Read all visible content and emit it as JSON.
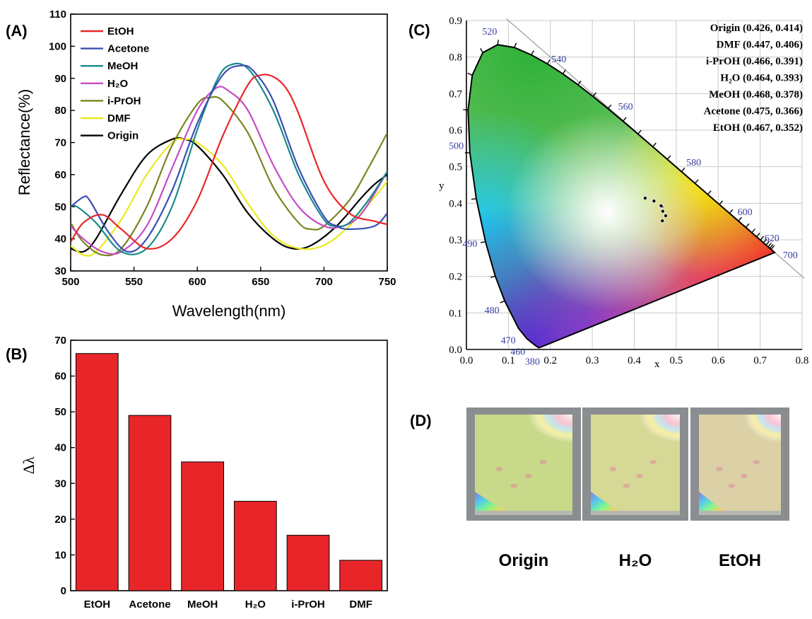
{
  "panels": {
    "a_letter": "(A)",
    "b_letter": "(B)",
    "c_letter": "(C)",
    "d_letter": "(D)"
  },
  "chart_data": [
    {
      "type": "line",
      "panel": "(A)",
      "xlabel": "Wavelength(nm)",
      "ylabel": "Reflectance(%)",
      "xlim": [
        500,
        750
      ],
      "ylim": [
        30,
        110
      ],
      "xticks": [
        500,
        550,
        600,
        650,
        700,
        750
      ],
      "yticks": [
        30,
        40,
        50,
        60,
        70,
        80,
        90,
        100,
        110
      ],
      "legend_position": "top-left",
      "series": [
        {
          "name": "EtOH",
          "color": "#e8262a",
          "x": [
            500,
            510,
            525,
            540,
            560,
            580,
            600,
            620,
            640,
            650,
            660,
            670,
            680,
            700,
            720,
            740,
            750
          ],
          "y": [
            39,
            45,
            47.5,
            43,
            37,
            40,
            52,
            72,
            88,
            91,
            90.5,
            87,
            79,
            58,
            48,
            45.5,
            44.5
          ]
        },
        {
          "name": "Acetone",
          "color": "#3a4fb4",
          "x": [
            500,
            510,
            515,
            530,
            545,
            560,
            580,
            600,
            620,
            635,
            645,
            660,
            680,
            700,
            710,
            720,
            740,
            750
          ],
          "y": [
            50,
            53,
            52,
            42,
            36,
            40,
            55,
            76,
            91,
            94,
            92,
            83,
            62,
            47,
            44,
            43,
            44,
            48
          ]
        },
        {
          "name": "MeOH",
          "color": "#188a8a",
          "x": [
            500,
            505,
            520,
            540,
            560,
            580,
            600,
            615,
            625,
            640,
            660,
            680,
            700,
            710,
            720,
            735,
            750
          ],
          "y": [
            50,
            50,
            45,
            36,
            37,
            50,
            74,
            89,
            94,
            93,
            80,
            60,
            46,
            44,
            45,
            52,
            61
          ]
        },
        {
          "name": "H₂O",
          "color": "#c64cc6",
          "x": [
            500,
            510,
            525,
            540,
            560,
            580,
            600,
            615,
            625,
            640,
            660,
            680,
            700,
            715,
            730,
            750
          ],
          "y": [
            44,
            40,
            36,
            36,
            44,
            62,
            80,
            87,
            86,
            80,
            63,
            50,
            44,
            44,
            48,
            61
          ]
        },
        {
          "name": "i-PrOH",
          "color": "#7b8420",
          "x": [
            500,
            510,
            525,
            540,
            560,
            580,
            600,
            610,
            620,
            640,
            660,
            680,
            690,
            700,
            720,
            735,
            750
          ],
          "y": [
            45,
            39,
            35,
            37,
            50,
            69,
            82,
            84,
            83,
            73,
            56,
            45,
            43,
            44,
            52,
            62,
            73
          ]
        },
        {
          "name": "DMF",
          "color": "#eaea1f",
          "x": [
            500,
            510,
            520,
            540,
            560,
            580,
            590,
            600,
            620,
            640,
            660,
            680,
            700,
            720,
            740,
            750
          ],
          "y": [
            38,
            35,
            36,
            46,
            60,
            70,
            71,
            70,
            63,
            51,
            41,
            37,
            38,
            44,
            53,
            58
          ]
        },
        {
          "name": "Origin",
          "color": "#000000",
          "x": [
            500,
            510,
            520,
            540,
            560,
            580,
            590,
            600,
            620,
            640,
            660,
            675,
            690,
            710,
            730,
            740,
            750
          ],
          "y": [
            37,
            36,
            40,
            54,
            66,
            71,
            71,
            69,
            60,
            48,
            40,
            37,
            38,
            44,
            53,
            57,
            60
          ]
        }
      ]
    },
    {
      "type": "bar",
      "panel": "(B)",
      "ylabel": "Δλ",
      "ylim": [
        0,
        70
      ],
      "yticks": [
        0,
        10,
        20,
        30,
        40,
        50,
        60,
        70
      ],
      "bar_color": "#e8262a",
      "categories": [
        "EtOH",
        "Acetone",
        "MeOH",
        "H₂O",
        "i-PrOH",
        "DMF"
      ],
      "values": [
        66.3,
        49,
        36,
        25,
        15.5,
        8.5
      ]
    },
    {
      "type": "scatter",
      "panel": "(C)",
      "xlabel": "x",
      "ylabel": "y",
      "xlim": [
        0.0,
        0.8
      ],
      "ylim": [
        0.0,
        0.9
      ],
      "xticks": [
        "0.0",
        "0.1",
        "0.2",
        "0.3",
        "0.4",
        "0.5",
        "0.6",
        "0.7",
        "0.8"
      ],
      "yticks": [
        "0.0",
        "0.1",
        "0.2",
        "0.3",
        "0.4",
        "0.5",
        "0.6",
        "0.7",
        "0.8",
        "0.9"
      ],
      "grid": true,
      "wavelength_labels": [
        {
          "text": "380",
          "x": 0.175,
          "y": 0.005
        },
        {
          "text": "460",
          "x": 0.144,
          "y": 0.03
        },
        {
          "text": "470",
          "x": 0.124,
          "y": 0.058
        },
        {
          "text": "480",
          "x": 0.091,
          "y": 0.133
        },
        {
          "text": "490",
          "x": 0.045,
          "y": 0.295
        },
        {
          "text": "500",
          "x": 0.008,
          "y": 0.538
        },
        {
          "text": "520",
          "x": 0.074,
          "y": 0.834
        },
        {
          "text": "540",
          "x": 0.23,
          "y": 0.754
        },
        {
          "text": "560",
          "x": 0.373,
          "y": 0.624
        },
        {
          "text": "580",
          "x": 0.512,
          "y": 0.487
        },
        {
          "text": "600",
          "x": 0.627,
          "y": 0.372
        },
        {
          "text": "620",
          "x": 0.691,
          "y": 0.308
        },
        {
          "text": "700",
          "x": 0.735,
          "y": 0.265
        }
      ],
      "points": [
        {
          "name": "Origin",
          "x": 0.426,
          "y": 0.414
        },
        {
          "name": "DMF",
          "x": 0.447,
          "y": 0.406
        },
        {
          "name": "i-PrOH",
          "x": 0.466,
          "y": 0.391
        },
        {
          "name": "H2O",
          "x": 0.464,
          "y": 0.393
        },
        {
          "name": "MeOH",
          "x": 0.468,
          "y": 0.378
        },
        {
          "name": "Acetone",
          "x": 0.475,
          "y": 0.366
        },
        {
          "name": "EtOH",
          "x": 0.467,
          "y": 0.352
        }
      ],
      "coord_labels": [
        {
          "name": "Origin",
          "coords": "(0.426, 0.414)"
        },
        {
          "name": "DMF",
          "coords": "(0.447, 0.406)"
        },
        {
          "name": "i-PrOH",
          "coords": "(0.466, 0.391)"
        },
        {
          "name": "H₂O",
          "coords": "(0.464, 0.393)"
        },
        {
          "name": "MeOH",
          "coords": "(0.468, 0.378)"
        },
        {
          "name": "Acetone",
          "coords": "(0.475, 0.366)"
        },
        {
          "name": "EtOH",
          "coords": "(0.467, 0.352)"
        }
      ]
    }
  ],
  "photos": [
    {
      "label": "Origin",
      "tint": "#c9d98a"
    },
    {
      "label": "H₂O",
      "tint": "#d6d996"
    },
    {
      "label": "EtOH",
      "tint": "#dcd0a6"
    }
  ]
}
